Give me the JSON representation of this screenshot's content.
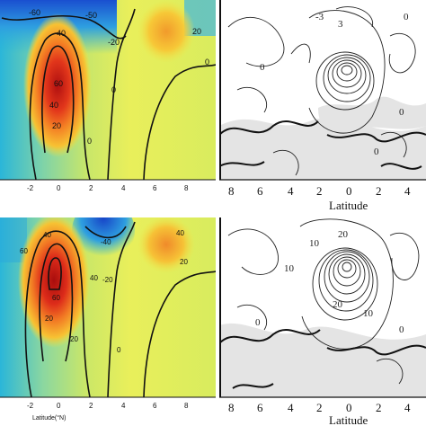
{
  "figure": {
    "panels": [
      {
        "id": "top-left",
        "kind": "colored-contour",
        "xaxis": {
          "ticks": [
            "-2",
            "0",
            "2",
            "4",
            "6",
            "8"
          ],
          "label": ""
        },
        "contour_labels": [
          "-60",
          "-40",
          "-20",
          "-50",
          "20",
          "60",
          "40",
          "20",
          "0",
          "0",
          "0"
        ]
      },
      {
        "id": "top-right",
        "kind": "line-contour",
        "xaxis": {
          "ticks": [
            "8",
            "6",
            "4",
            "2",
            "0",
            "2",
            "4"
          ],
          "label": "Latitude"
        },
        "contour_labels": [
          "-3",
          "0",
          "3",
          "0",
          "0",
          "0"
        ]
      },
      {
        "id": "bottom-left",
        "kind": "colored-contour",
        "xaxis": {
          "ticks": [
            "-2",
            "0",
            "2",
            "4",
            "6",
            "8"
          ],
          "label": "Latitude(°N)"
        },
        "contour_labels": [
          "60",
          "40",
          "-40",
          "40",
          "20",
          "-20",
          "60",
          "20",
          "40",
          "20",
          "0"
        ]
      },
      {
        "id": "bottom-right",
        "kind": "line-contour",
        "xaxis": {
          "ticks": [
            "8",
            "6",
            "4",
            "2",
            "0",
            "2",
            "4"
          ],
          "label": "Latitude"
        },
        "contour_labels": [
          "10",
          "20",
          "10",
          "10",
          "20",
          "0",
          "0"
        ]
      }
    ],
    "colors": {
      "high": "#b01010",
      "mid": "#f4e43c",
      "low": "#1a4fd0",
      "contour": "#111111",
      "shade": "#d9d9d9"
    }
  }
}
